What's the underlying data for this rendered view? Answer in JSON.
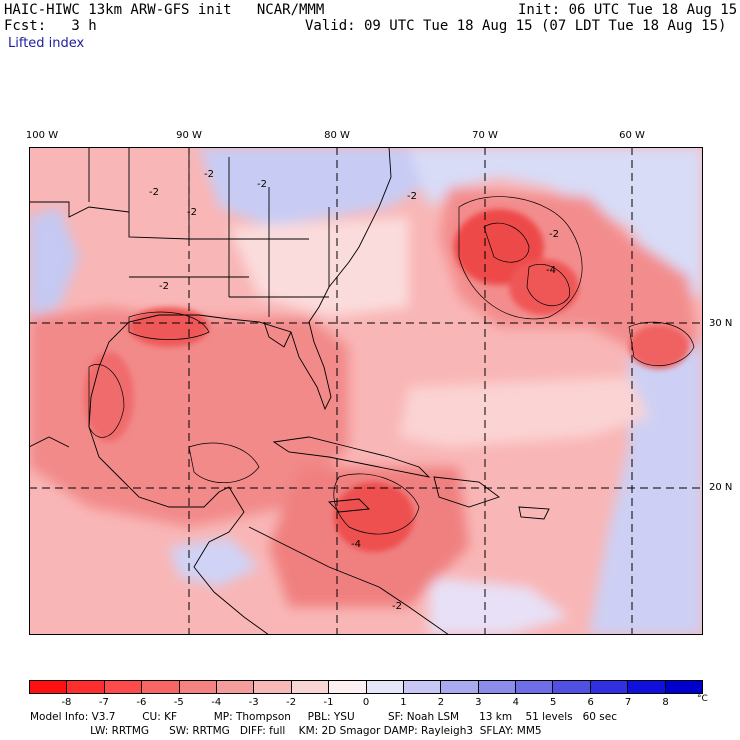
{
  "header": {
    "model_title": "HAIC-HIWC 13km ARW-GFS init   NCAR/MMM",
    "init_time": "Init: 06 UTC Tue 18 Aug 15",
    "fcst": "Fcst:   3 h",
    "valid_time": "Valid: 09 UTC Tue 18 Aug 15 (07 LDT Tue 18 Aug 15)",
    "field_name": "Lifted index"
  },
  "map": {
    "longitude_labels": [
      "100 W",
      "90 W",
      "80 W",
      "70 W",
      "60 W"
    ],
    "latitude_labels": [
      "30 N",
      "20 N"
    ],
    "contour_labels": [
      "-2",
      "-2",
      "-2",
      "-2",
      "-2",
      "-4",
      "-4",
      "-2",
      "-2",
      "-2"
    ],
    "colors": {
      "ocean_unstable": "#f48b8b",
      "strong_unstable": "#ee4a4a",
      "weak_unstable": "#f9c0c0",
      "neutral": "#fde8e8",
      "stable": "#c8ccf4",
      "contour": "#000000"
    }
  },
  "colorbar": {
    "labels": [
      "-8",
      "-7",
      "-6",
      "-5",
      "-4",
      "-3",
      "-2",
      "-1",
      "0",
      "1",
      "2",
      "3",
      "4",
      "5",
      "6",
      "7",
      "8"
    ],
    "unit": "°C",
    "colors": [
      "#ff1010",
      "#ff2e2e",
      "#fd4a4a",
      "#f96565",
      "#f68181",
      "#f59c9c",
      "#f7b8b8",
      "#f9d4d4",
      "#fdf0f0",
      "#e6e6fb",
      "#c8c8f5",
      "#aaaaef",
      "#8c8ceb",
      "#6e6ee7",
      "#5050e3",
      "#3030e0",
      "#1010dd",
      "#0000cc"
    ]
  },
  "model_info": {
    "line1": "Model Info: V3.7        CU: KF           MP: Thompson     PBL: YSU          SF: Noah LSM      13 km    51 levels   60 sec",
    "line2": "                  LW: RRTMG      SW: RRTMG   DIFF: full    KM: 2D Smagor DAMP: Rayleigh3  SFLAY: MM5"
  }
}
